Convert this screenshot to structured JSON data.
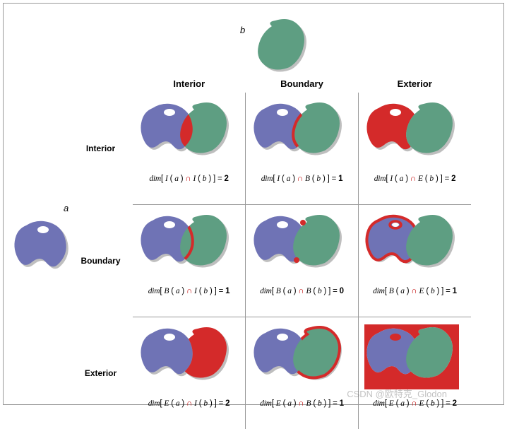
{
  "labels": {
    "top_shape": "b",
    "left_shape": "a",
    "col1": "Interior",
    "col2": "Boundary",
    "col3": "Exterior",
    "row1": "Interior",
    "row2": "Boundary",
    "row3": "Exterior"
  },
  "colors": {
    "shape_a": "#6f73b5",
    "shape_b": "#5e9e82",
    "highlight": "#d42a2a",
    "highlight_dark": "#b31a1a",
    "shadow": "rgba(0,0,0,0.25)",
    "border": "#999999",
    "bg": "#ffffff",
    "intersect_op": "#c00000"
  },
  "formula": {
    "dim": "dim",
    "I": "I",
    "B": "B",
    "E": "E",
    "a": "a",
    "b": "b",
    "cap": "∩",
    "eq": "="
  },
  "cells": [
    {
      "row": "I",
      "col": "I",
      "result": "2"
    },
    {
      "row": "I",
      "col": "B",
      "result": "1"
    },
    {
      "row": "I",
      "col": "E",
      "result": "2"
    },
    {
      "row": "B",
      "col": "I",
      "result": "1"
    },
    {
      "row": "B",
      "col": "B",
      "result": "0"
    },
    {
      "row": "B",
      "col": "E",
      "result": "1"
    },
    {
      "row": "E",
      "col": "I",
      "result": "2"
    },
    {
      "row": "E",
      "col": "B",
      "result": "1"
    },
    {
      "row": "E",
      "col": "E",
      "result": "2"
    }
  ],
  "watermark": "CSDN @欧特克_Glodon"
}
